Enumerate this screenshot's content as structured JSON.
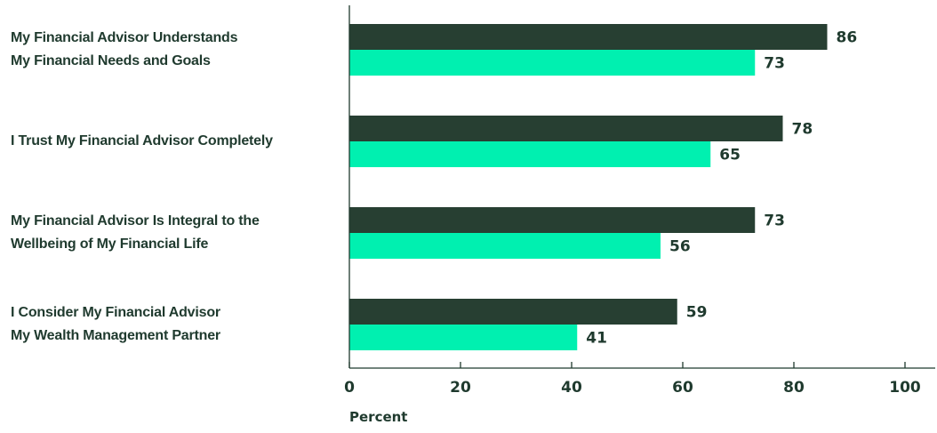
{
  "chart_data": {
    "type": "bar",
    "orientation": "horizontal",
    "categories": [
      [
        "My Financial Advisor Understands",
        "My Financial Needs and Goals"
      ],
      [
        "I Trust My Financial Advisor Completely"
      ],
      [
        "My Financial Advisor Is Integral to the",
        "Wellbeing of My Financial Life"
      ],
      [
        "I Consider My Financial Advisor",
        "My Wealth Management Partner"
      ]
    ],
    "series": [
      {
        "color": "#273f32",
        "values": [
          86,
          78,
          73,
          59
        ]
      },
      {
        "color": "#00f0b0",
        "values": [
          73,
          65,
          56,
          41
        ]
      }
    ],
    "xlabel": "Percent",
    "ylabel": "",
    "xlim": [
      0,
      100
    ],
    "xticks": [
      0,
      20,
      40,
      60,
      80,
      100
    ],
    "grid": false,
    "legend": "none",
    "data_labels": true
  },
  "colors": {
    "text": "#1f3a2e",
    "axis": "#1f3a2e"
  }
}
